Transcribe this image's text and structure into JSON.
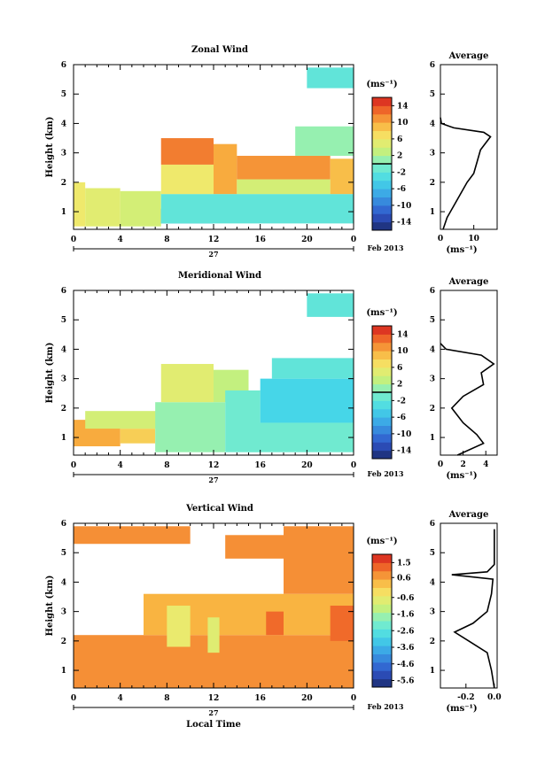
{
  "chart_data": [
    {
      "type": "heatmap",
      "title": "Zonal Wind",
      "ylabel": "Height (km)",
      "xlabel": "",
      "x_ticks": [
        "0",
        "4",
        "8",
        "12",
        "16",
        "20",
        "0"
      ],
      "xlim": [
        0,
        24
      ],
      "y_ticks": [
        "1",
        "2",
        "3",
        "4",
        "5",
        "6"
      ],
      "ylim": [
        0.4,
        6
      ],
      "date_label": "27",
      "month_label": "Feb 2013",
      "colorbar": {
        "unit": "(ms⁻¹)",
        "ticks": [
          "14",
          "10",
          "6",
          "2",
          "-2",
          "-6",
          "-10",
          "-14"
        ],
        "range": [
          -16,
          16
        ],
        "zero_line": 0
      },
      "regions": [
        {
          "x0": 0,
          "x1": 1,
          "y0": 0.5,
          "y1": 2.0,
          "value": 6
        },
        {
          "x0": 1,
          "x1": 4,
          "y0": 0.5,
          "y1": 1.8,
          "value": 5
        },
        {
          "x0": 4,
          "x1": 7.5,
          "y0": 0.5,
          "y1": 1.7,
          "value": 4
        },
        {
          "x0": 7.5,
          "x1": 12,
          "y0": 0.6,
          "y1": 1.1,
          "value": -7
        },
        {
          "x0": 7.5,
          "x1": 24,
          "y0": 0.6,
          "y1": 1.6,
          "value": -2
        },
        {
          "x0": 7.5,
          "x1": 12,
          "y0": 1.6,
          "y1": 2.6,
          "value": 6
        },
        {
          "x0": 7.5,
          "x1": 12,
          "y0": 2.6,
          "y1": 3.5,
          "value": 12
        },
        {
          "x0": 12,
          "x1": 14,
          "y0": 1.6,
          "y1": 3.3,
          "value": 10
        },
        {
          "x0": 14,
          "x1": 22,
          "y0": 1.6,
          "y1": 2.1,
          "value": 4
        },
        {
          "x0": 14,
          "x1": 22,
          "y0": 2.1,
          "y1": 2.9,
          "value": 11
        },
        {
          "x0": 22,
          "x1": 24,
          "y0": 1.6,
          "y1": 2.8,
          "value": 9
        },
        {
          "x0": 19,
          "x1": 24,
          "y0": 2.9,
          "y1": 3.9,
          "value": 1
        },
        {
          "x0": 20,
          "x1": 24,
          "y0": 5.2,
          "y1": 5.9,
          "value": -2
        }
      ],
      "average": {
        "title": "Average",
        "xlabel": "(ms⁻¹)",
        "x_ticks": [
          "0",
          "10"
        ],
        "xlim": [
          0,
          17
        ],
        "y_ticks": [
          "1",
          "2",
          "3",
          "4",
          "5",
          "6"
        ],
        "profile": [
          [
            0.8,
            0.4
          ],
          [
            2,
            0.8
          ],
          [
            4,
            1.2
          ],
          [
            6,
            1.6
          ],
          [
            8,
            2.0
          ],
          [
            10,
            2.3
          ],
          [
            11,
            2.7
          ],
          [
            12,
            3.1
          ],
          [
            14,
            3.4
          ],
          [
            15,
            3.55
          ],
          [
            13,
            3.7
          ],
          [
            4,
            3.85
          ],
          [
            0.3,
            4.0
          ],
          [
            0,
            4.2
          ]
        ]
      }
    },
    {
      "type": "heatmap",
      "title": "Meridional Wind",
      "ylabel": "Height (km)",
      "xlabel": "",
      "x_ticks": [
        "0",
        "4",
        "8",
        "12",
        "16",
        "20",
        "0"
      ],
      "xlim": [
        0,
        24
      ],
      "y_ticks": [
        "1",
        "2",
        "3",
        "4",
        "5",
        "6"
      ],
      "ylim": [
        0.4,
        6
      ],
      "date_label": "27",
      "month_label": "Feb 2013",
      "colorbar": {
        "unit": "(ms⁻¹)",
        "ticks": [
          "14",
          "10",
          "6",
          "2",
          "-2",
          "-6",
          "-10",
          "-14"
        ],
        "range": [
          -16,
          16
        ],
        "zero_line": 0
      },
      "regions": [
        {
          "x0": 0,
          "x1": 4,
          "y0": 0.7,
          "y1": 1.6,
          "value": 10
        },
        {
          "x0": 4,
          "x1": 7,
          "y0": 0.8,
          "y1": 1.3,
          "value": 8
        },
        {
          "x0": 1,
          "x1": 8,
          "y0": 1.3,
          "y1": 1.9,
          "value": 4
        },
        {
          "x0": 7,
          "x1": 13,
          "y0": 0.5,
          "y1": 2.2,
          "value": 1
        },
        {
          "x0": 7.5,
          "x1": 12,
          "y0": 2.2,
          "y1": 3.5,
          "value": 5
        },
        {
          "x0": 12,
          "x1": 15,
          "y0": 2.2,
          "y1": 3.3,
          "value": 3
        },
        {
          "x0": 13,
          "x1": 16,
          "y0": 0.5,
          "y1": 2.6,
          "value": -1
        },
        {
          "x0": 15,
          "x1": 24,
          "y0": 0.5,
          "y1": 1.5,
          "value": -1
        },
        {
          "x0": 16,
          "x1": 24,
          "y0": 1.5,
          "y1": 3.0,
          "value": -4
        },
        {
          "x0": 17,
          "x1": 24,
          "y0": 3.0,
          "y1": 3.7,
          "value": -2
        },
        {
          "x0": 20,
          "x1": 24,
          "y0": 5.1,
          "y1": 5.9,
          "value": -2
        }
      ],
      "average": {
        "title": "Average",
        "xlabel": "(ms⁻¹)",
        "x_ticks": [
          "0",
          "2",
          "4"
        ],
        "xlim": [
          0,
          5
        ],
        "y_ticks": [
          "1",
          "2",
          "3",
          "4",
          "5",
          "6"
        ],
        "profile": [
          [
            1.5,
            0.4
          ],
          [
            3.8,
            0.8
          ],
          [
            3.2,
            1.1
          ],
          [
            2,
            1.5
          ],
          [
            1,
            2.0
          ],
          [
            2,
            2.4
          ],
          [
            3.8,
            2.8
          ],
          [
            3.6,
            3.2
          ],
          [
            4.7,
            3.5
          ],
          [
            3.6,
            3.8
          ],
          [
            0.5,
            4.0
          ],
          [
            0,
            4.2
          ]
        ]
      }
    },
    {
      "type": "heatmap",
      "title": "Vertical Wind",
      "ylabel": "Height (km)",
      "xlabel": "Local Time",
      "x_ticks": [
        "0",
        "4",
        "8",
        "12",
        "16",
        "20",
        "0"
      ],
      "xlim": [
        0,
        24
      ],
      "y_ticks": [
        "1",
        "2",
        "3",
        "4",
        "5",
        "6"
      ],
      "ylim": [
        0.4,
        6
      ],
      "date_label": "27",
      "month_label": "Feb 2013",
      "colorbar": {
        "unit": "(ms⁻¹)",
        "ticks": [
          "1.5",
          "0.6",
          "-0.6",
          "-1.6",
          "-2.6",
          "-3.6",
          "-4.6",
          "-5.6"
        ],
        "range": [
          -6,
          2
        ]
      },
      "regions": [
        {
          "x0": 0,
          "x1": 24,
          "y0": 0.4,
          "y1": 2.2,
          "value": 0.8
        },
        {
          "x0": 6,
          "x1": 24,
          "y0": 2.2,
          "y1": 3.6,
          "value": 0.4
        },
        {
          "x0": 8,
          "x1": 10,
          "y0": 1.8,
          "y1": 3.2,
          "value": -0.6
        },
        {
          "x0": 11.5,
          "x1": 12.5,
          "y0": 1.6,
          "y1": 2.8,
          "value": -0.8
        },
        {
          "x0": 16.5,
          "x1": 18,
          "y0": 2.2,
          "y1": 3.0,
          "value": 1.2
        },
        {
          "x0": 22,
          "x1": 24,
          "y0": 2.0,
          "y1": 3.2,
          "value": 1.2
        },
        {
          "x0": 0,
          "x1": 10,
          "y0": 5.3,
          "y1": 5.9,
          "value": 0.8
        },
        {
          "x0": 13,
          "x1": 18,
          "y0": 4.8,
          "y1": 5.6,
          "value": 0.8
        },
        {
          "x0": 18,
          "x1": 24,
          "y0": 3.6,
          "y1": 5.9,
          "value": 0.8
        }
      ],
      "average": {
        "title": "Average",
        "xlabel": "(ms⁻¹)",
        "x_ticks": [
          "-0.2",
          "0.0"
        ],
        "xlim": [
          -0.38,
          0.02
        ],
        "y_ticks": [
          "1",
          "2",
          "3",
          "4",
          "5",
          "6"
        ],
        "profile": [
          [
            0,
            0.4
          ],
          [
            -0.02,
            1.0
          ],
          [
            -0.05,
            1.6
          ],
          [
            -0.18,
            2.0
          ],
          [
            -0.28,
            2.3
          ],
          [
            -0.15,
            2.6
          ],
          [
            -0.05,
            3.0
          ],
          [
            -0.02,
            3.6
          ],
          [
            -0.01,
            4.1
          ],
          [
            -0.3,
            4.25
          ],
          [
            -0.05,
            4.35
          ],
          [
            0,
            4.6
          ],
          [
            0,
            5.2
          ],
          [
            0,
            5.8
          ]
        ]
      }
    }
  ]
}
